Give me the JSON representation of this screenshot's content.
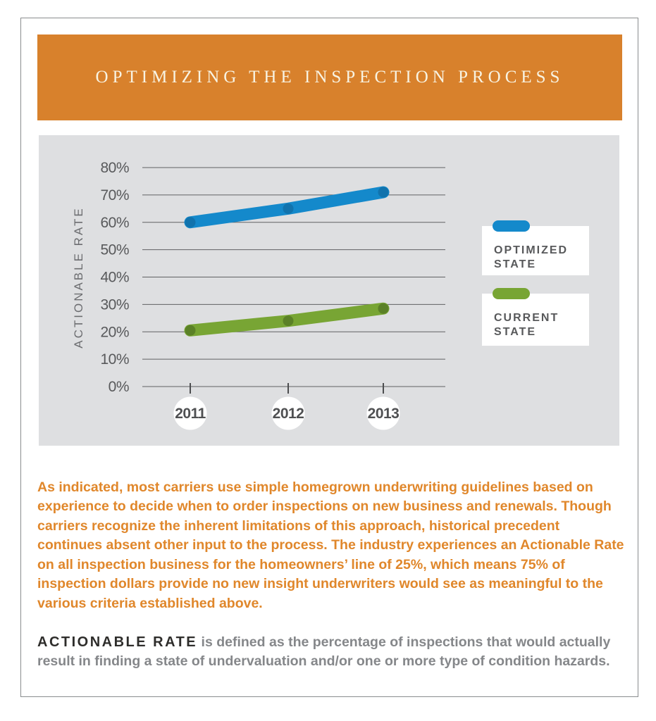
{
  "header": {
    "title": "OPTIMIZING THE INSPECTION PROCESS"
  },
  "chart_data": {
    "type": "line",
    "categories": [
      "2011",
      "2012",
      "2013"
    ],
    "series": [
      {
        "name": "OPTIMIZED STATE",
        "values": [
          60,
          65,
          71
        ],
        "color": "#1489CB",
        "dot_color": "#1173AD"
      },
      {
        "name": "CURRENT STATE",
        "values": [
          20.5,
          24,
          28.5
        ],
        "color": "#78A534",
        "dot_color": "#5B8127"
      }
    ],
    "title": "",
    "xlabel": "",
    "ylabel": "ACTIONABLE RATE",
    "ylim": [
      0,
      80
    ],
    "ytick_step": 10,
    "ytick_format": "percent",
    "ytick_labels": [
      "0%",
      "10%",
      "20%",
      "30%",
      "40%",
      "50%",
      "60%",
      "70%",
      "80%"
    ],
    "grid": true,
    "legend_position": "right"
  },
  "body": {
    "paragraph_orange": "As indicated, most carriers use simple homegrown underwriting guidelines based on experience to decide when to order inspections on new business and renewals. Though carriers recognize the inherent limitations of this approach, historical precedent continues absent other input to the process. The industry experiences an Actionable Rate on all inspection business for the homeowners’ line of 25%, which means 75% of inspection dollars provide no new insight underwriters would see as meaningful to the various criteria established above.",
    "definition_term": "ACTIONABLE RATE",
    "definition_text": " is defined as the percentage of inspections that would actually result in finding a state of undervaluation and/or one or more type of condition hazards."
  },
  "colors": {
    "banner_orange": "#D8812C",
    "title_cream": "#F8F3E2",
    "card_border": "#8A8C8E",
    "panel_gray": "#DEDFE1",
    "grid_line": "#606163",
    "axis_tick_text": "#58595B",
    "axis_title_text": "#6C6D70",
    "year_label_text": "#4F5052",
    "year_bubble": "#FFFFFF",
    "legend_bg": "#FFFFFF",
    "legend_text": "#58595B",
    "paragraph_orange": "#E0872B",
    "definition_term_black": "#2E2D2B",
    "definition_gray": "#85878A"
  }
}
